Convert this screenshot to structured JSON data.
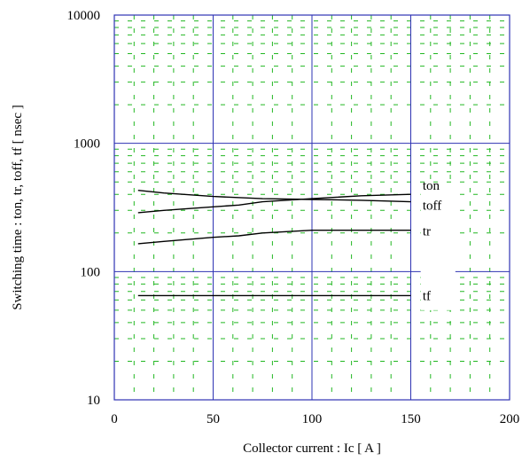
{
  "chart_data": {
    "type": "line",
    "xlabel": "Collector current  :  Ic  [ A ]",
    "ylabel": "Switching time  :  ton, tr, toff, tf  [ nsec ]",
    "xlim": [
      0,
      200
    ],
    "ylim": [
      10,
      10000
    ],
    "yscale": "log",
    "grid": true,
    "x_ticks": [
      "0",
      "50",
      "100",
      "150",
      "200"
    ],
    "y_ticks": [
      "10",
      "100",
      "1000",
      "10000"
    ],
    "series": [
      {
        "name": "ton",
        "x": [
          12,
          25,
          50,
          75,
          100,
          125,
          150
        ],
        "y": [
          430,
          410,
          385,
          370,
          365,
          360,
          350
        ]
      },
      {
        "name": "toff",
        "x": [
          12,
          25,
          50,
          63,
          75,
          100,
          125,
          150
        ],
        "y": [
          288,
          300,
          320,
          330,
          350,
          370,
          390,
          400
        ]
      },
      {
        "name": "tr",
        "x": [
          12,
          25,
          50,
          63,
          75,
          100,
          125,
          150
        ],
        "y": [
          165,
          172,
          185,
          190,
          200,
          210,
          210,
          210
        ]
      },
      {
        "name": "tf",
        "x": [
          12,
          50,
          100,
          150
        ],
        "y": [
          65,
          65,
          65,
          65
        ]
      }
    ],
    "colors": {
      "major_grid": "#2e33b3",
      "minor_grid": "#22b722",
      "line": "#000000"
    }
  }
}
